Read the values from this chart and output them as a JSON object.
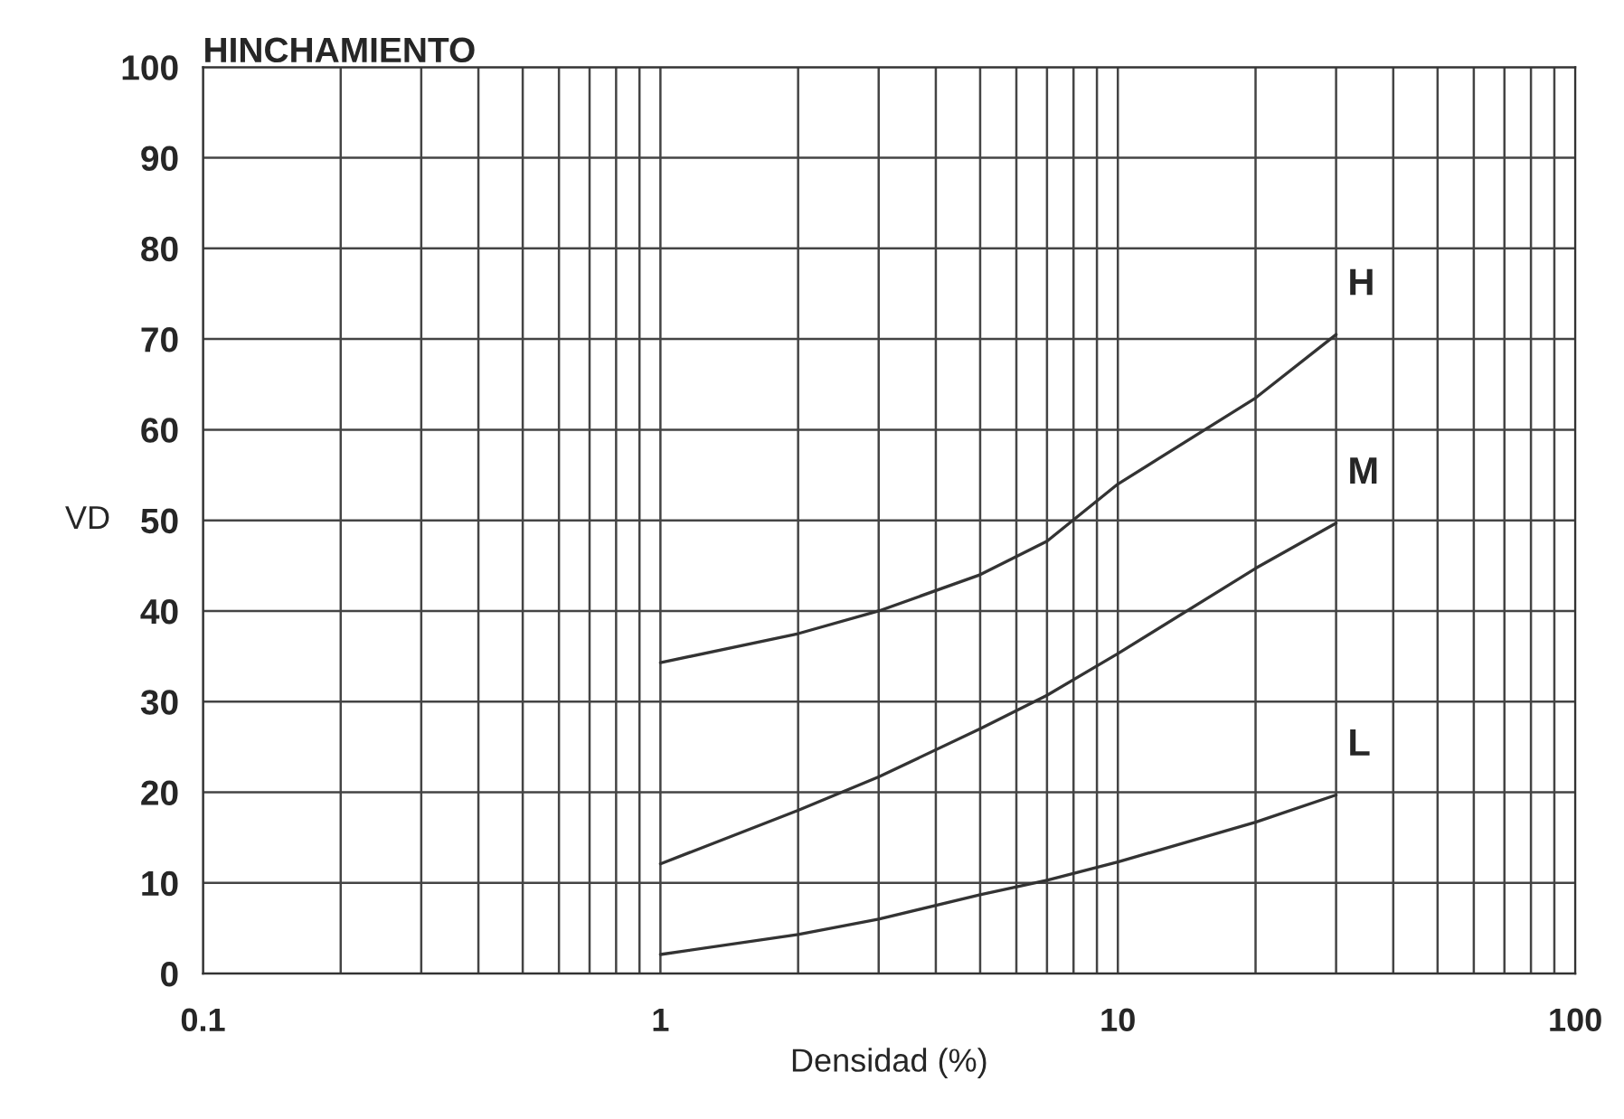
{
  "chart_data": {
    "type": "line",
    "title": "HINCHAMIENTO",
    "xlabel": "Densidad (%)",
    "ylabel": "VD",
    "log": "x",
    "xlim": [
      0.1,
      100
    ],
    "xticks": [
      0.1,
      1,
      10,
      100
    ],
    "ylim": [
      0,
      100
    ],
    "yticks": [
      0,
      10,
      20,
      30,
      40,
      50,
      60,
      70,
      80,
      90,
      100
    ],
    "grid": true,
    "marker": "none",
    "line_style": "solid",
    "series": [
      {
        "name": "H",
        "color": "#333333",
        "x": [
          1,
          2,
          3,
          5,
          7,
          10,
          20,
          30
        ],
        "values": [
          34.3,
          37.5,
          40,
          44,
          47.7,
          54,
          63.5,
          70.5
        ]
      },
      {
        "name": "M",
        "color": "#333333",
        "x": [
          1,
          2,
          3,
          5,
          7,
          10,
          20,
          30
        ],
        "values": [
          12.1,
          18,
          21.7,
          27,
          30.7,
          35.3,
          44.7,
          49.7
        ]
      },
      {
        "name": "L",
        "color": "#333333",
        "x": [
          1,
          2,
          3,
          5,
          7,
          10,
          20,
          30
        ],
        "values": [
          2.1,
          4.3,
          6,
          8.7,
          10.3,
          12.3,
          16.7,
          19.7
        ]
      }
    ]
  }
}
